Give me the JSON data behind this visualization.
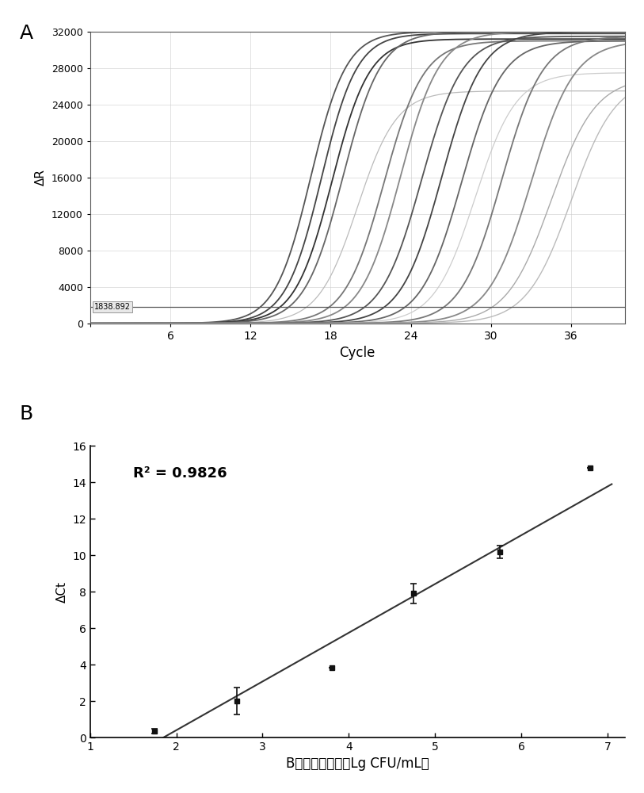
{
  "panel_A": {
    "xlabel": "Cycle",
    "ylabel": "ΔR",
    "xlim": [
      0,
      40
    ],
    "ylim": [
      0,
      32000
    ],
    "yticks": [
      0,
      4000,
      8000,
      12000,
      16000,
      20000,
      24000,
      28000,
      32000
    ],
    "xticks": [
      0,
      6,
      12,
      18,
      24,
      30,
      36
    ],
    "threshold": 1838.892,
    "threshold_label": "1838.892",
    "curves": [
      {
        "midpoint": 16.5,
        "plateau": 32000,
        "steepness": 0.75,
        "color": "#555555",
        "lw": 1.3
      },
      {
        "midpoint": 17.3,
        "plateau": 31800,
        "steepness": 0.75,
        "color": "#444444",
        "lw": 1.3
      },
      {
        "midpoint": 18.1,
        "plateau": 31200,
        "steepness": 0.72,
        "color": "#333333",
        "lw": 1.3
      },
      {
        "midpoint": 18.9,
        "plateau": 32000,
        "steepness": 0.7,
        "color": "#666666",
        "lw": 1.3
      },
      {
        "midpoint": 20.0,
        "plateau": 25500,
        "steepness": 0.68,
        "color": "#bbbbbb",
        "lw": 0.9
      },
      {
        "midpoint": 22.0,
        "plateau": 31000,
        "steepness": 0.68,
        "color": "#777777",
        "lw": 1.3
      },
      {
        "midpoint": 23.2,
        "plateau": 32000,
        "steepness": 0.68,
        "color": "#888888",
        "lw": 1.3
      },
      {
        "midpoint": 24.8,
        "plateau": 31500,
        "steepness": 0.66,
        "color": "#555555",
        "lw": 1.3
      },
      {
        "midpoint": 26.3,
        "plateau": 32000,
        "steepness": 0.66,
        "color": "#444444",
        "lw": 1.3
      },
      {
        "midpoint": 27.8,
        "plateau": 31000,
        "steepness": 0.66,
        "color": "#666666",
        "lw": 1.3
      },
      {
        "midpoint": 28.8,
        "plateau": 27500,
        "steepness": 0.65,
        "color": "#cccccc",
        "lw": 0.9
      },
      {
        "midpoint": 30.8,
        "plateau": 31500,
        "steepness": 0.65,
        "color": "#777777",
        "lw": 1.3
      },
      {
        "midpoint": 33.0,
        "plateau": 31000,
        "steepness": 0.62,
        "color": "#888888",
        "lw": 1.3
      },
      {
        "midpoint": 34.5,
        "plateau": 27000,
        "steepness": 0.6,
        "color": "#aaaaaa",
        "lw": 1.0
      },
      {
        "midpoint": 36.0,
        "plateau": 27000,
        "steepness": 0.6,
        "color": "#bbbbbb",
        "lw": 1.0
      }
    ],
    "bg_color": "#ffffff",
    "grid_color": "#cccccc"
  },
  "panel_B": {
    "xlabel": "B试剂菌株浓度（Lg CFU/mL）",
    "ylabel": "ΔCt",
    "xlim": [
      1,
      7.2
    ],
    "ylim": [
      0,
      16
    ],
    "xticks": [
      1,
      2,
      3,
      4,
      5,
      6,
      7
    ],
    "yticks": [
      0,
      2,
      4,
      6,
      8,
      10,
      12,
      14,
      16
    ],
    "r_squared_text": "R² = 0.9826",
    "scatter_x": [
      1.75,
      2.7,
      3.8,
      4.75,
      5.75,
      6.8
    ],
    "scatter_y": [
      0.35,
      2.0,
      3.85,
      7.9,
      10.2,
      14.8
    ],
    "scatter_yerr": [
      0.15,
      0.75,
      0.0,
      0.55,
      0.35,
      0.0
    ],
    "line_x": [
      1.85,
      7.05
    ],
    "line_y": [
      0.0,
      13.9
    ],
    "marker_color": "#111111",
    "line_color": "#333333"
  }
}
